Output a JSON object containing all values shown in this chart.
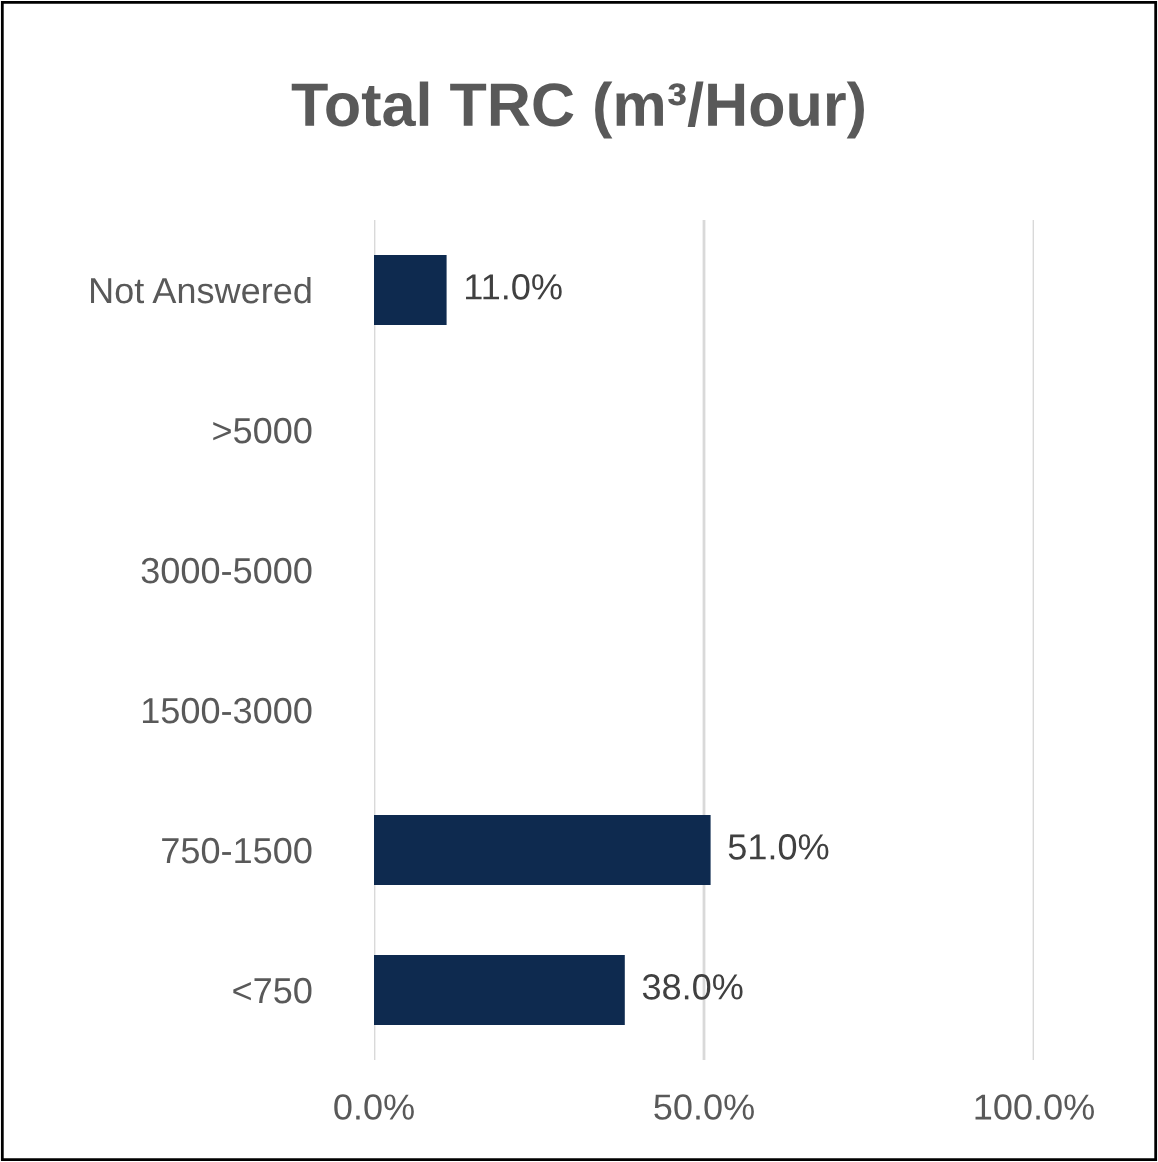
{
  "chart_data": {
    "type": "bar",
    "orientation": "horizontal",
    "title": "Total TRC (m³/Hour)",
    "categories": [
      "Not Answered",
      ">5000",
      "3000-5000",
      "1500-3000",
      "750-1500",
      "<750"
    ],
    "values": [
      11.0,
      0,
      0,
      0,
      51.0,
      38.0
    ],
    "value_labels": [
      "11.0%",
      null,
      null,
      null,
      "51.0%",
      "38.0%"
    ],
    "color": "#0e2a4f",
    "xlim": [
      0,
      100
    ],
    "xticks": [
      {
        "value": 0,
        "label": "0.0%"
      },
      {
        "value": 50,
        "label": "50.0%"
      },
      {
        "value": 100,
        "label": "100.0%"
      }
    ],
    "grid": "x",
    "legend": false
  }
}
